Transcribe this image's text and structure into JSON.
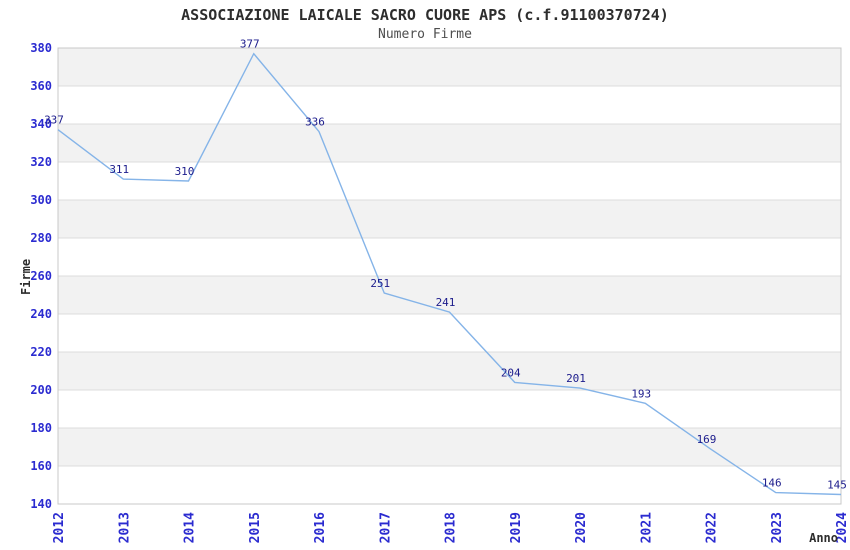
{
  "title": "ASSOCIAZIONE LAICALE SACRO CUORE APS (c.f.91100370724)",
  "subtitle": "Numero Firme",
  "chart_data": {
    "type": "line",
    "title": "ASSOCIAZIONE LAICALE SACRO CUORE APS (c.f.91100370724)",
    "subtitle": "Numero Firme",
    "x": [
      "2012",
      "2013",
      "2014",
      "2015",
      "2016",
      "2017",
      "2018",
      "2019",
      "2020",
      "2021",
      "2022",
      "2023",
      "2024"
    ],
    "values": [
      337,
      311,
      310,
      377,
      336,
      251,
      241,
      204,
      201,
      193,
      169,
      146,
      145
    ],
    "xlabel": "Anno",
    "ylabel": "Firme",
    "ylim": [
      140,
      380
    ],
    "ytick_step": 20,
    "xtick_rotation": -90,
    "grid": "alternating-horizontal-bands",
    "legend": "none",
    "colors": {
      "line": "#85b4e8",
      "data_label": "#1c1c8c",
      "tick_label": "#2b2bd0",
      "band_gray": "#f2f2f2",
      "band_white": "#ffffff",
      "grid_line": "#dcdcdc",
      "plot_border": "#c8c8c8",
      "title_text": "#2d2d2d",
      "subtitle_text": "#4e4e4e"
    }
  }
}
